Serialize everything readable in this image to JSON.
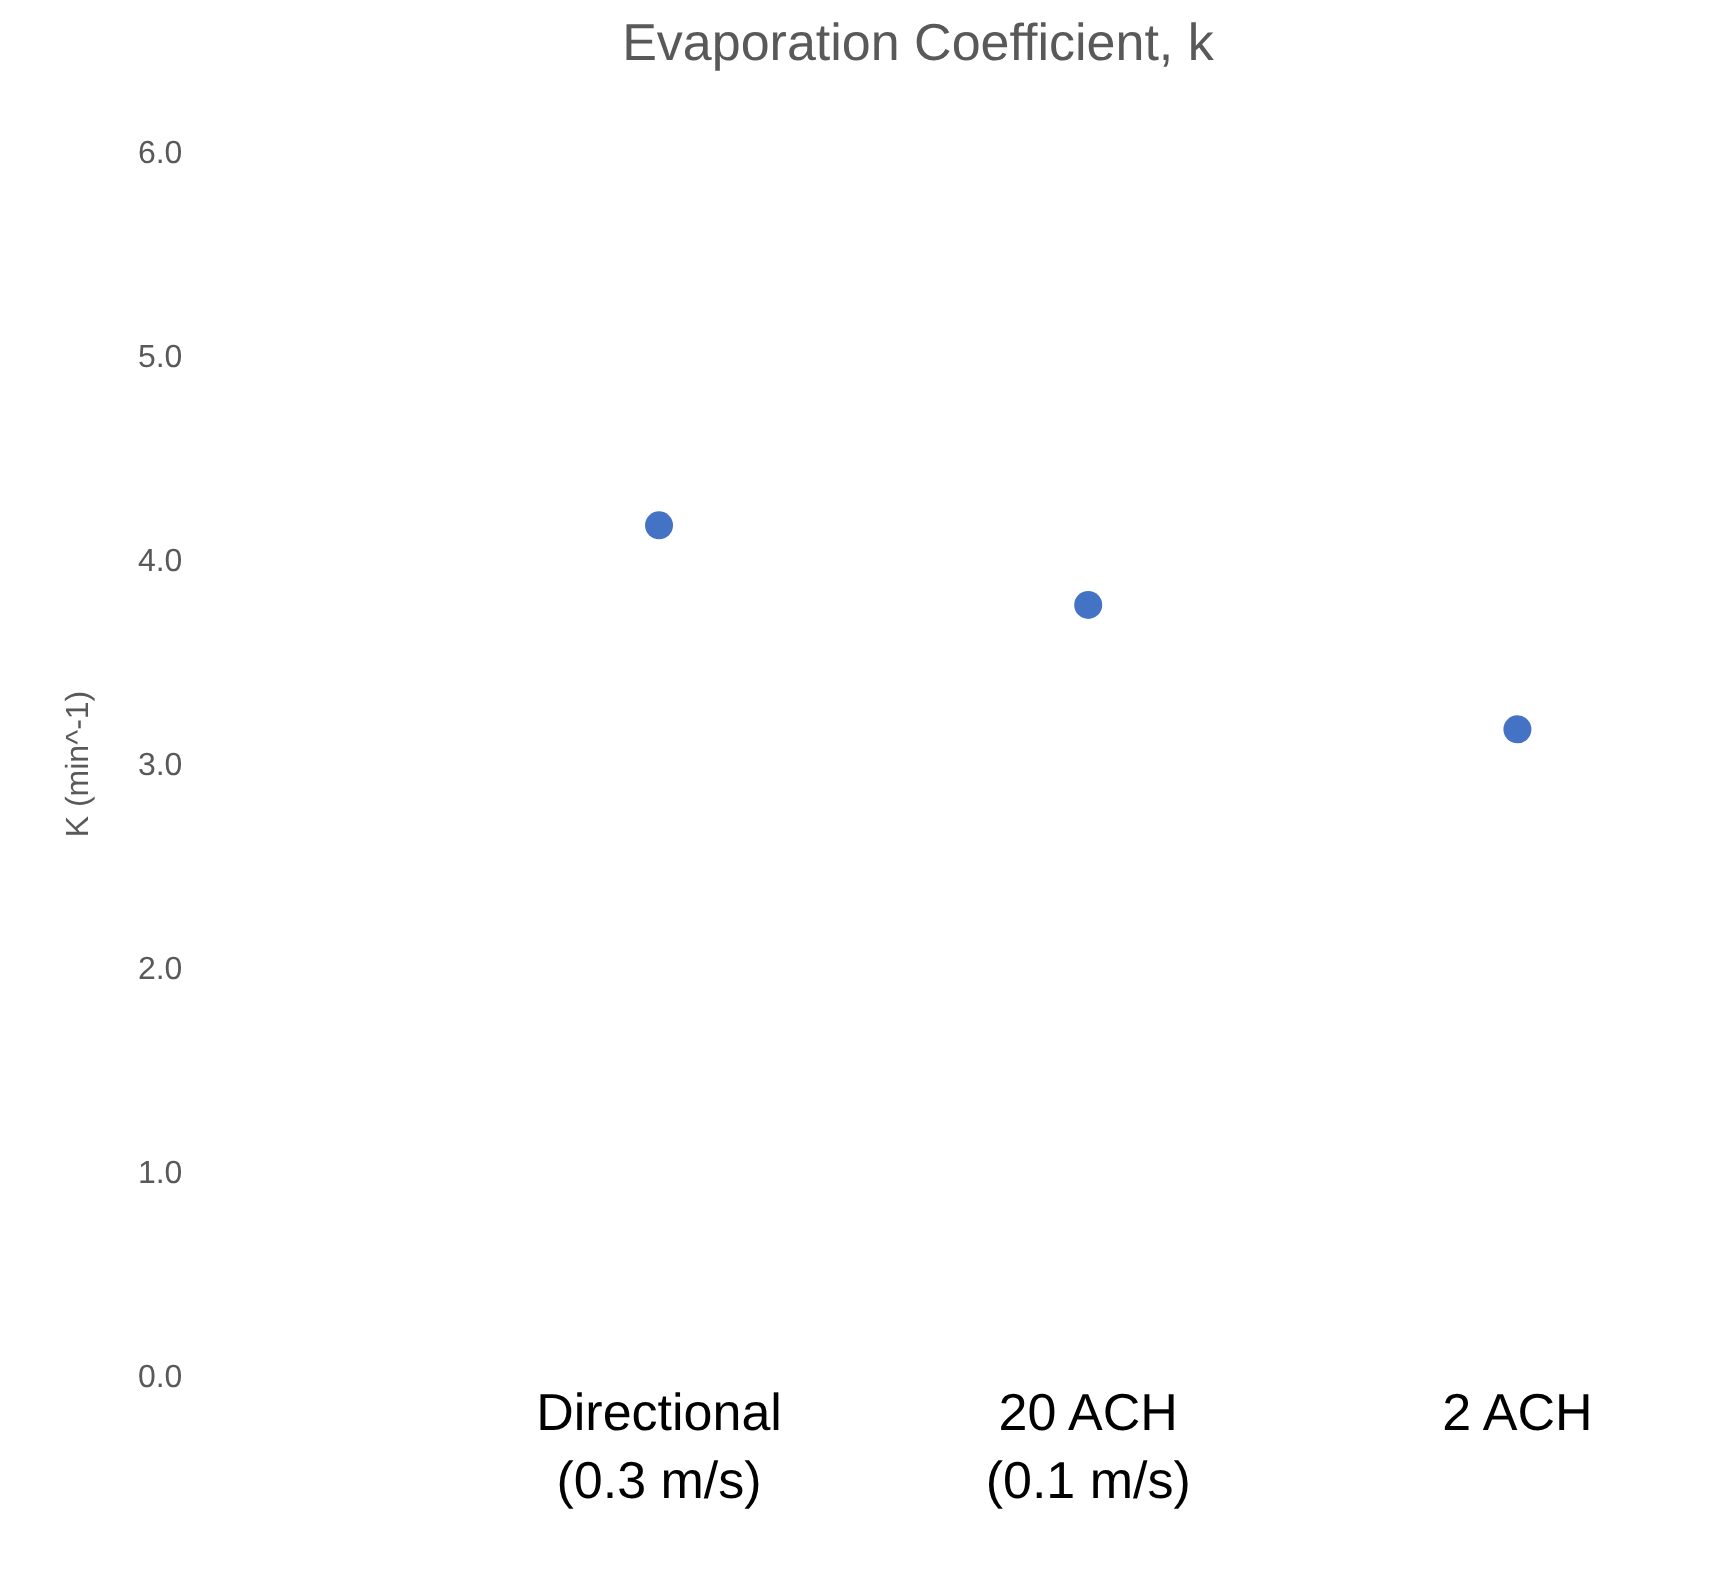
{
  "chart_data": {
    "type": "scatter",
    "title": "Evaporation Coefficient, k",
    "ylabel": "K (min^-1)",
    "categories": [
      "Directional\n(0.3 m/s)",
      "20 ACH\n(0.1 m/s)",
      "2 ACH"
    ],
    "series": [
      {
        "color": "#4472c4",
        "values": [
          4.17,
          3.78,
          3.17
        ]
      }
    ],
    "ylim": [
      0,
      6
    ],
    "yticks": [
      {
        "value": 0,
        "label": "0.0"
      },
      {
        "value": 1,
        "label": "1.0"
      },
      {
        "value": 2,
        "label": "2.0"
      },
      {
        "value": 3,
        "label": "3.0"
      },
      {
        "value": 4,
        "label": "4.0"
      },
      {
        "value": 5,
        "label": "5.0"
      },
      {
        "value": 6,
        "label": "6.0"
      }
    ],
    "marker": "circle",
    "grid": false,
    "legend": false
  }
}
